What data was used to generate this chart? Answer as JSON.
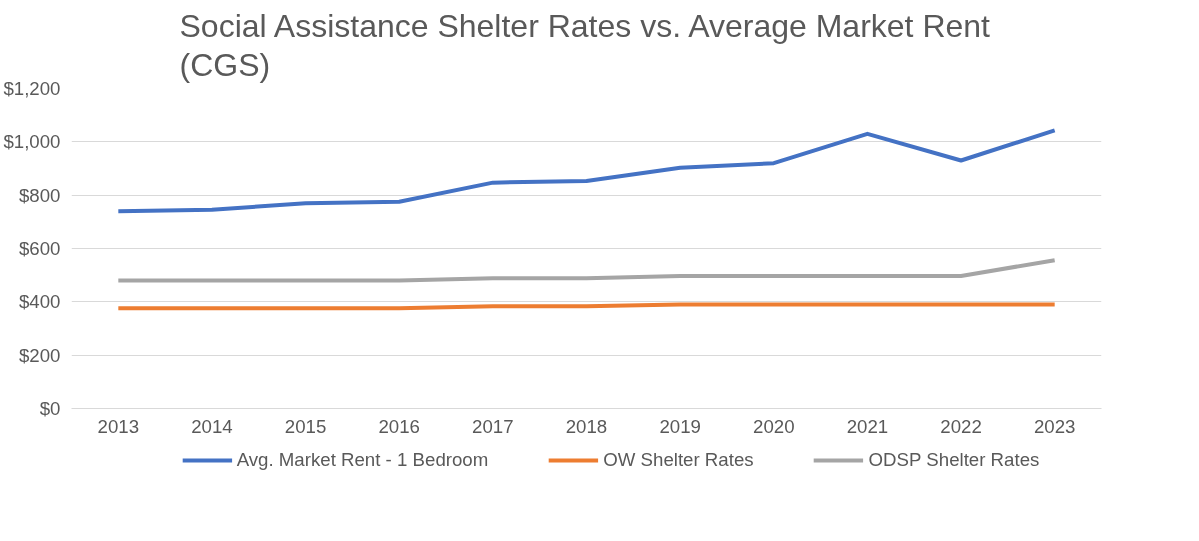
{
  "chart_data": {
    "type": "line",
    "title": "Social Assistance Shelter Rates vs. Average Market Rent\n(CGS)",
    "categories": [
      "2013",
      "2014",
      "2015",
      "2016",
      "2017",
      "2018",
      "2019",
      "2020",
      "2021",
      "2022",
      "2023"
    ],
    "series": [
      {
        "name": "Avg. Market Rent - 1 Bedroom",
        "color": "#4472c4",
        "values": [
          740,
          745,
          770,
          775,
          847,
          853,
          903,
          920,
          1030,
          930,
          1043
        ]
      },
      {
        "name": "OW Shelter Rates",
        "color": "#ed7d31",
        "values": [
          376,
          376,
          376,
          376,
          383,
          383,
          390,
          390,
          390,
          390,
          390
        ]
      },
      {
        "name": "ODSP Shelter Rates",
        "color": "#a5a5a5",
        "values": [
          480,
          480,
          480,
          480,
          488,
          488,
          497,
          497,
          497,
          497,
          556
        ]
      }
    ],
    "ylim": [
      0,
      1200
    ],
    "yticks": [
      {
        "value": 0,
        "label": "$0"
      },
      {
        "value": 200,
        "label": "$200"
      },
      {
        "value": 400,
        "label": "$400"
      },
      {
        "value": 600,
        "label": "$600"
      },
      {
        "value": 800,
        "label": "$800"
      },
      {
        "value": 1000,
        "label": "$1,000"
      },
      {
        "value": 1200,
        "label": "$1,200"
      }
    ],
    "grid": "y",
    "legend": "bottom",
    "marker": "none",
    "line_style": "solid"
  }
}
